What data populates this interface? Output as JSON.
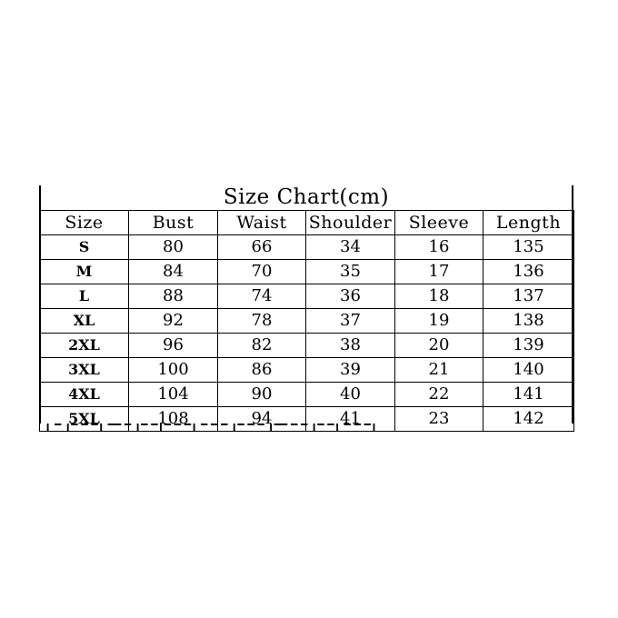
{
  "title": "Size Chart(cm)",
  "headers": [
    "Size",
    "Bust",
    "Waist",
    "Shoulder",
    "Sleeve",
    "Length"
  ],
  "rows": [
    [
      "S",
      "80",
      "66",
      "34",
      "16",
      "135"
    ],
    [
      "M",
      "84",
      "70",
      "35",
      "17",
      "136"
    ],
    [
      "L",
      "88",
      "74",
      "36",
      "18",
      "137"
    ],
    [
      "XL",
      "92",
      "78",
      "37",
      "19",
      "138"
    ],
    [
      "2XL",
      "96",
      "82",
      "38",
      "20",
      "139"
    ],
    [
      "3XL",
      "100",
      "86",
      "39",
      "21",
      "140"
    ],
    [
      "4XL",
      "104",
      "90",
      "40",
      "22",
      "141"
    ],
    [
      "5XL",
      "108",
      "94",
      "41",
      "23",
      "142"
    ]
  ]
}
